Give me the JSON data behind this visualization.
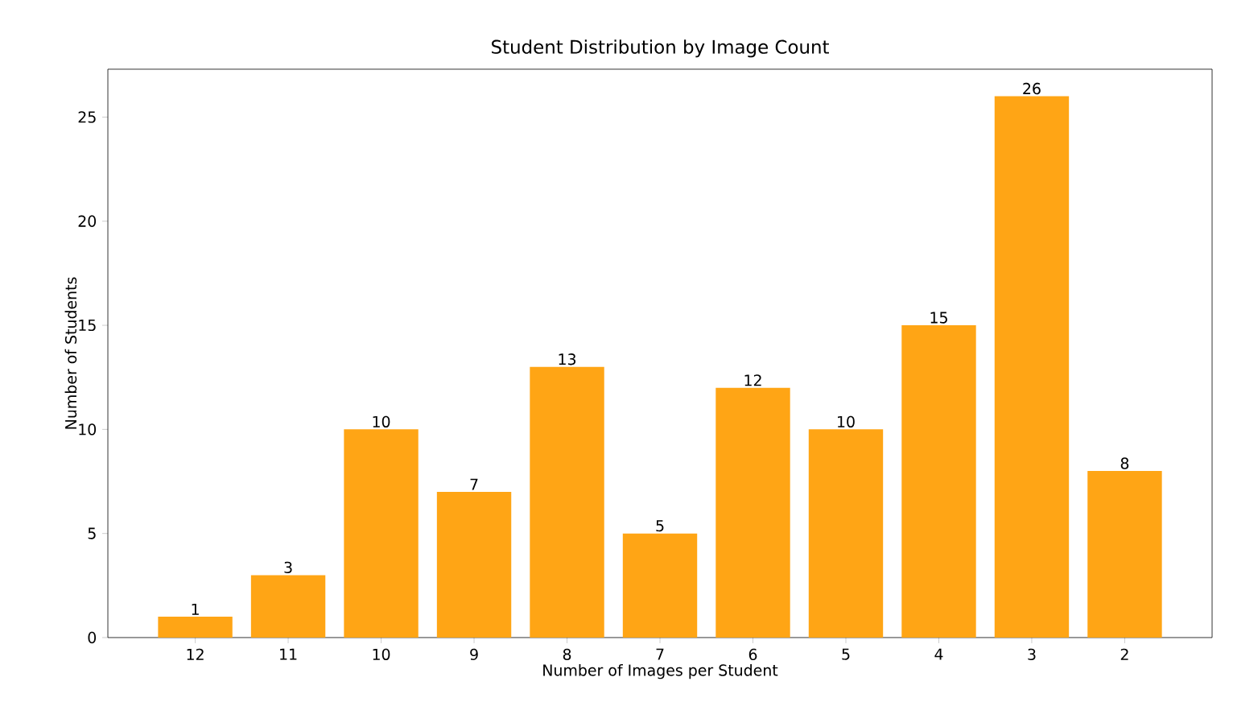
{
  "chart_data": {
    "type": "bar",
    "title": "Student Distribution by Image Count",
    "xlabel": "Number of Images per Student",
    "ylabel": "Number of Students",
    "categories": [
      "12",
      "11",
      "10",
      "9",
      "8",
      "7",
      "6",
      "5",
      "4",
      "3",
      "2"
    ],
    "values": [
      1,
      3,
      10,
      7,
      13,
      5,
      12,
      10,
      15,
      26,
      8
    ],
    "color": "#ffa515",
    "ylim": [
      0,
      27.3
    ],
    "yticks": [
      0,
      5,
      10,
      15,
      20,
      25
    ],
    "data_labels": true
  }
}
